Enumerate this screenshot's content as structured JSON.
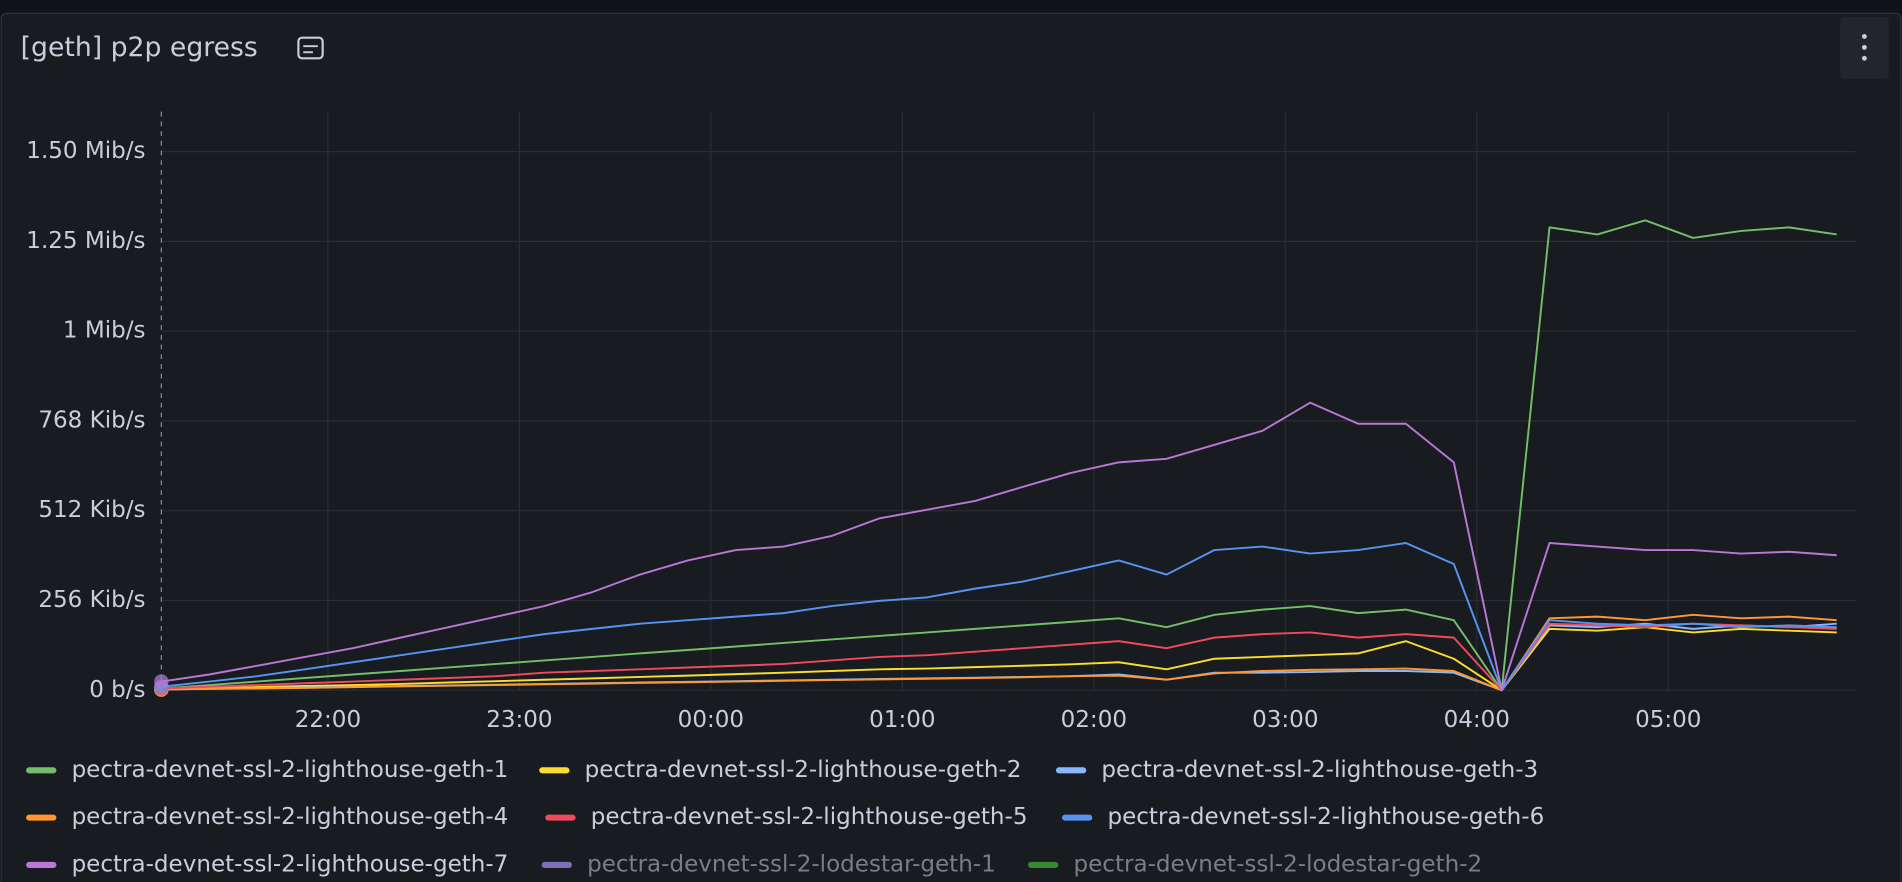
{
  "chart_data": {
    "type": "line",
    "title": "[geth] p2p egress",
    "x": [
      21.13,
      21.38,
      21.63,
      21.88,
      22.13,
      22.38,
      22.63,
      22.88,
      23.13,
      23.38,
      23.63,
      23.88,
      24.13,
      24.38,
      24.63,
      24.88,
      25.13,
      25.38,
      25.63,
      25.88,
      26.13,
      26.38,
      26.63,
      26.88,
      27.13,
      27.38,
      27.63,
      27.88,
      28.13,
      28.38,
      28.63,
      28.88,
      29.13,
      29.38,
      29.63,
      29.88
    ],
    "xlim": [
      21.13,
      29.98
    ],
    "xticks": [
      {
        "value": 22,
        "label": "22:00"
      },
      {
        "value": 23,
        "label": "23:00"
      },
      {
        "value": 24,
        "label": "00:00"
      },
      {
        "value": 25,
        "label": "01:00"
      },
      {
        "value": 26,
        "label": "02:00"
      },
      {
        "value": 27,
        "label": "03:00"
      },
      {
        "value": 28,
        "label": "04:00"
      },
      {
        "value": 29,
        "label": "05:00"
      }
    ],
    "ylim": [
      0,
      1650
    ],
    "yticks": [
      {
        "value": 0,
        "label": "0 b/s"
      },
      {
        "value": 256,
        "label": "256 Kib/s"
      },
      {
        "value": 512,
        "label": "512 Kib/s"
      },
      {
        "value": 768,
        "label": "768 Kib/s"
      },
      {
        "value": 1024,
        "label": "1 Mib/s"
      },
      {
        "value": 1280,
        "label": "1.25 Mib/s"
      },
      {
        "value": 1536,
        "label": "1.50 Mib/s"
      }
    ],
    "grid": true,
    "series": [
      {
        "name": "pectra-devnet-ssl-2-lighthouse-geth-1",
        "color": "#73bf69",
        "values": [
          5,
          15,
          25,
          35,
          45,
          55,
          65,
          75,
          85,
          95,
          105,
          115,
          125,
          135,
          145,
          155,
          165,
          175,
          185,
          195,
          205,
          180,
          215,
          230,
          240,
          220,
          230,
          200,
          0,
          1320,
          1300,
          1340,
          1290,
          1310,
          1320,
          1300
        ]
      },
      {
        "name": "pectra-devnet-ssl-2-lighthouse-geth-2",
        "color": "#fade2a",
        "values": [
          3,
          6,
          9,
          12,
          15,
          18,
          22,
          26,
          30,
          34,
          38,
          42,
          46,
          50,
          55,
          60,
          62,
          66,
          70,
          74,
          80,
          60,
          90,
          95,
          100,
          105,
          140,
          90,
          0,
          175,
          170,
          180,
          165,
          175,
          170,
          165
        ]
      },
      {
        "name": "pectra-devnet-ssl-2-lighthouse-geth-3",
        "color": "#8ab8ff",
        "values": [
          2,
          4,
          6,
          8,
          10,
          12,
          14,
          16,
          18,
          20,
          22,
          24,
          26,
          28,
          30,
          32,
          34,
          36,
          38,
          40,
          45,
          30,
          50,
          50,
          52,
          55,
          55,
          50,
          0,
          185,
          180,
          190,
          175,
          185,
          180,
          190
        ]
      },
      {
        "name": "pectra-devnet-ssl-2-lighthouse-geth-4",
        "color": "#ff9830",
        "values": [
          2,
          4,
          5,
          7,
          9,
          11,
          13,
          15,
          17,
          19,
          21,
          23,
          25,
          27,
          29,
          31,
          33,
          35,
          37,
          40,
          42,
          30,
          48,
          55,
          58,
          60,
          62,
          55,
          0,
          205,
          210,
          200,
          215,
          205,
          210,
          200
        ]
      },
      {
        "name": "pectra-devnet-ssl-2-lighthouse-geth-5",
        "color": "#f2495c",
        "values": [
          5,
          10,
          15,
          20,
          25,
          30,
          35,
          40,
          50,
          55,
          60,
          65,
          70,
          75,
          85,
          95,
          100,
          110,
          120,
          130,
          140,
          120,
          150,
          160,
          165,
          150,
          160,
          150,
          0,
          190,
          185,
          180,
          190,
          185,
          180,
          175
        ]
      },
      {
        "name": "pectra-devnet-ssl-2-lighthouse-geth-6",
        "color": "#5794f2",
        "values": [
          10,
          25,
          40,
          60,
          80,
          100,
          120,
          140,
          160,
          175,
          190,
          200,
          210,
          220,
          240,
          255,
          265,
          290,
          310,
          340,
          370,
          330,
          400,
          410,
          390,
          400,
          420,
          360,
          0,
          200,
          190,
          185,
          190,
          180,
          185,
          180
        ]
      },
      {
        "name": "pectra-devnet-ssl-2-lighthouse-geth-7",
        "color": "#b877d9",
        "values": [
          25,
          45,
          70,
          95,
          120,
          150,
          180,
          210,
          240,
          280,
          330,
          370,
          400,
          410,
          440,
          490,
          515,
          540,
          580,
          620,
          650,
          660,
          700,
          740,
          820,
          760,
          760,
          650,
          0,
          420,
          410,
          400,
          400,
          390,
          395,
          385
        ]
      },
      {
        "name": "pectra-devnet-ssl-2-lodestar-geth-1",
        "color": "#806eb7",
        "hidden": true
      },
      {
        "name": "pectra-devnet-ssl-2-lodestar-geth-2",
        "color": "#37872d",
        "hidden": true
      }
    ]
  }
}
